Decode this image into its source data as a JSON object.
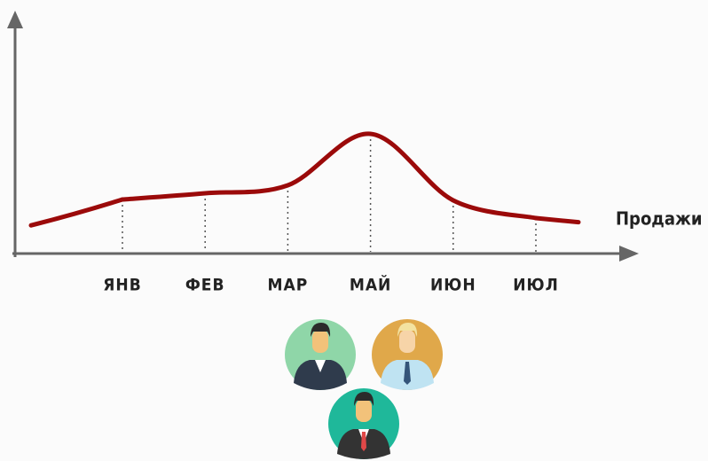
{
  "chart_data": {
    "type": "line",
    "categories": [
      "ЯНВ",
      "ФЕВ",
      "МАР",
      "МАЙ",
      "ИЮН",
      "ИЮЛ"
    ],
    "series": [
      {
        "name": "Продажи",
        "color": "#9b0a0a",
        "values": [
          61,
          68,
          77,
          135,
          60,
          40
        ]
      }
    ],
    "x_label": "Продажи",
    "ylim": [
      0,
      270
    ]
  }
}
